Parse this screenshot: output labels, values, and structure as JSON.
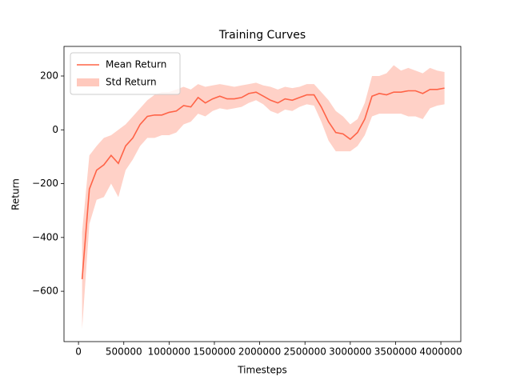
{
  "chart_data": {
    "type": "line",
    "title": "Training Curves",
    "xlabel": "Timesteps",
    "ylabel": "Return",
    "x": [
      40000,
      120000,
      200000,
      280000,
      360000,
      440000,
      520000,
      600000,
      680000,
      760000,
      840000,
      920000,
      1000000,
      1080000,
      1160000,
      1240000,
      1320000,
      1400000,
      1480000,
      1560000,
      1640000,
      1720000,
      1800000,
      1880000,
      1960000,
      2040000,
      2120000,
      2200000,
      2280000,
      2360000,
      2440000,
      2520000,
      2600000,
      2680000,
      2760000,
      2840000,
      2920000,
      3000000,
      3080000,
      3160000,
      3240000,
      3320000,
      3400000,
      3480000,
      3560000,
      3640000,
      3720000,
      3800000,
      3880000,
      3960000,
      4040000
    ],
    "series": [
      {
        "name": "Mean Return",
        "color": "#ff6347",
        "values": [
          -555,
          -220,
          -150,
          -130,
          -95,
          -125,
          -60,
          -30,
          20,
          50,
          55,
          55,
          65,
          70,
          90,
          85,
          120,
          100,
          115,
          125,
          115,
          115,
          120,
          135,
          140,
          125,
          110,
          100,
          115,
          110,
          120,
          130,
          130,
          85,
          30,
          -10,
          -15,
          -35,
          -10,
          40,
          125,
          135,
          130,
          140,
          140,
          145,
          145,
          135,
          150,
          150,
          155
        ]
      },
      {
        "name": "Std Return",
        "color": "#ffc9bd",
        "lower": [
          -740,
          -350,
          -260,
          -250,
          -200,
          -250,
          -150,
          -110,
          -60,
          -30,
          -30,
          -20,
          -20,
          -10,
          20,
          30,
          60,
          50,
          70,
          80,
          75,
          80,
          85,
          100,
          110,
          95,
          70,
          60,
          75,
          70,
          85,
          95,
          90,
          30,
          -40,
          -80,
          -80,
          -80,
          -60,
          -20,
          50,
          60,
          60,
          60,
          60,
          50,
          50,
          40,
          80,
          90,
          95
        ],
        "upper": [
          -380,
          -95,
          -60,
          -30,
          -20,
          0,
          20,
          50,
          80,
          110,
          130,
          140,
          140,
          150,
          160,
          150,
          170,
          160,
          165,
          170,
          165,
          160,
          165,
          170,
          175,
          165,
          160,
          150,
          160,
          155,
          160,
          170,
          170,
          140,
          110,
          70,
          50,
          20,
          40,
          100,
          200,
          200,
          210,
          240,
          220,
          230,
          220,
          210,
          230,
          220,
          215
        ]
      }
    ],
    "xlim": [
      -160000,
      4220000
    ],
    "ylim": [
      -787,
      310
    ],
    "xticks": [
      0,
      500000,
      1000000,
      1500000,
      2000000,
      2500000,
      3000000,
      3500000,
      4000000
    ],
    "yticks": [
      {
        "value": -600,
        "label": "−600"
      },
      {
        "value": -400,
        "label": "−400"
      },
      {
        "value": -200,
        "label": "−200"
      },
      0,
      200
    ],
    "legend": "upper left"
  }
}
